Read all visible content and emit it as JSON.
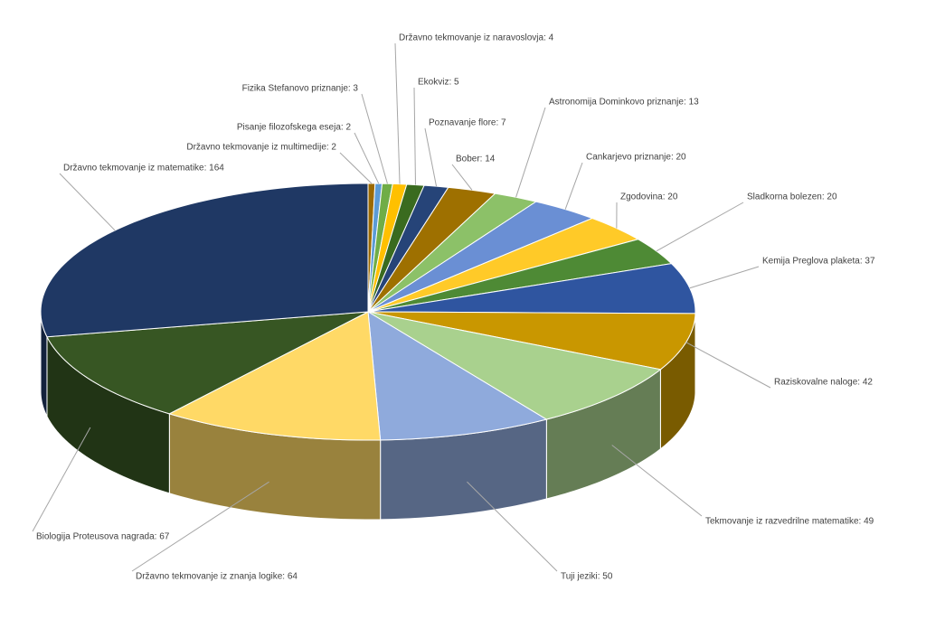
{
  "chart_data": {
    "type": "pie3d",
    "values": [
      2,
      2,
      3,
      4,
      5,
      7,
      14,
      13,
      20,
      20,
      20,
      37,
      42,
      49,
      50,
      64,
      67,
      164
    ],
    "value_labels": [
      "Državno tekmovanje iz multimedije: 2",
      "Pisanje filozofskega eseja: 2",
      "Fizika Stefanovo priznanje: 3",
      "Državno tekmovanje iz naravoslovja: 4",
      "Ekokviz: 5",
      "Poznavanje flore: 7",
      "Bober: 14",
      "Astronomija Dominkovo priznanje: 13",
      "Cankarjevo priznanje: 20",
      "Zgodovina: 20",
      "Sladkorna bolezen: 20",
      "Kemija Preglova plaketa: 37",
      "Raziskovalne naloge: 42",
      "Tekmovanje iz razvedrilne matematike: 49",
      "Tuji jeziki: 50",
      "Državno tekmovanje iz znanja logike: 64",
      "Biologija Proteusova nagrada: 67",
      "Državno tekmovanje iz matematike: 164"
    ],
    "colors": [
      "#9c6a00",
      "#5b9bd5",
      "#70ad47",
      "#ffc000",
      "#3a6b1f",
      "#264478",
      "#9e7000",
      "#8cc168",
      "#6a8fd4",
      "#ffca28",
      "#4e8a35",
      "#2f55a0",
      "#c99700",
      "#a9d18e",
      "#8faadc",
      "#ffd966",
      "#375623",
      "#1f3864"
    ]
  }
}
